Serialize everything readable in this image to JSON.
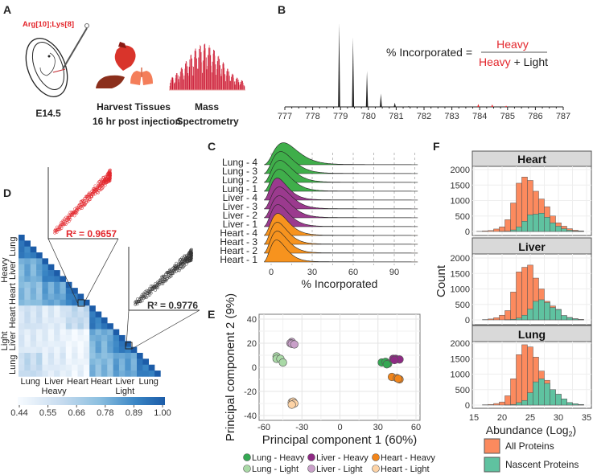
{
  "panel_labels": {
    "a": "A",
    "b": "B",
    "c": "C",
    "d": "D",
    "e": "E",
    "f": "F"
  },
  "colors": {
    "red": "#e3262c",
    "heat_low": "#f7fbff",
    "heat_high": "#1c5ca8",
    "lung": "#3fae4a",
    "liver": "#9b3a8e",
    "heart": "#f7931e",
    "lung_light": "#a9d9a6",
    "liver_light": "#c9a0c9",
    "heart_light": "#fdd3a6",
    "all_proteins": "#fc8a5e",
    "nascent_proteins": "#5fc2a0"
  },
  "panel_a": {
    "reagent": "Arg[10];Lys[8]",
    "step1": "E14.5",
    "step2_line1": "Harvest Tissues",
    "step2_line2": "16 hr post injection",
    "step3_line1": "Mass",
    "step3_line2": "Spectrometry",
    "icons": [
      "embryo-injection-icon",
      "heart-icon",
      "liver-icon",
      "lungs-icon",
      "mass-spectrum-icon"
    ]
  },
  "panel_b": {
    "formula_left": "% Incorporated =",
    "numerator": "Heavy",
    "denominator_heavy": "Heavy",
    "denominator_rest": " + Light",
    "x_ticks": [
      777,
      778,
      779,
      780,
      781,
      782,
      783,
      784,
      785,
      786,
      787
    ],
    "peaks": [
      {
        "mz": 778.95,
        "rel": 1.0,
        "label": "light"
      },
      {
        "mz": 779.45,
        "rel": 0.83,
        "label": "light"
      },
      {
        "mz": 779.95,
        "rel": 0.43,
        "label": "light"
      },
      {
        "mz": 780.45,
        "rel": 0.16,
        "label": "light"
      },
      {
        "mz": 780.95,
        "rel": 0.05,
        "label": "light"
      },
      {
        "mz": 781.45,
        "rel": 0.01,
        "label": "light"
      },
      {
        "mz": 783.95,
        "rel": 0.035,
        "label": "heavy"
      },
      {
        "mz": 784.45,
        "rel": 0.03,
        "label": "heavy"
      },
      {
        "mz": 784.95,
        "rel": 0.015,
        "label": "heavy"
      }
    ]
  },
  "panel_c": {
    "xlabel": "% Incorporated",
    "x_ticks": [
      0,
      30,
      60,
      90
    ],
    "xlim": [
      -5,
      107
    ],
    "ridges": [
      {
        "label": "Lung - 4",
        "tissue": "lung",
        "mode": 9
      },
      {
        "label": "Lung - 3",
        "tissue": "lung",
        "mode": 7
      },
      {
        "label": "Lung - 2",
        "tissue": "lung",
        "mode": 6.5
      },
      {
        "label": "Lung - 1",
        "tissue": "lung",
        "mode": 6
      },
      {
        "label": "Liver - 4",
        "tissue": "liver",
        "mode": 4.5
      },
      {
        "label": "Liver - 3",
        "tissue": "liver",
        "mode": 6
      },
      {
        "label": "Liver - 2",
        "tissue": "liver",
        "mode": 6
      },
      {
        "label": "Liver - 1",
        "tissue": "liver",
        "mode": 5
      },
      {
        "label": "Heart - 4",
        "tissue": "heart",
        "mode": 5
      },
      {
        "label": "Heart - 3",
        "tissue": "heart",
        "mode": 4.5
      },
      {
        "label": "Heart - 2",
        "tissue": "heart",
        "mode": 4.5
      },
      {
        "label": "Heart - 1",
        "tissue": "heart",
        "mode": 4
      }
    ]
  },
  "panel_d": {
    "groups": [
      "Heavy",
      "Light"
    ],
    "row_labels": [
      "Lung",
      "Liver",
      "Heart",
      "Heart",
      "Liver",
      "Lung"
    ],
    "col_labels": [
      "Lung",
      "Liver",
      "Heart",
      "Heart",
      "Liver",
      "Lung"
    ],
    "replicates_per_block": 4,
    "block_correlations": [
      [
        0.88
      ],
      [
        0.76,
        0.88
      ],
      [
        0.72,
        0.78,
        0.88
      ],
      [
        0.56,
        0.52,
        0.6,
        0.88
      ],
      [
        0.52,
        0.5,
        0.46,
        0.76,
        0.88
      ],
      [
        0.6,
        0.52,
        0.48,
        0.73,
        0.78,
        0.88
      ]
    ],
    "colorbar_ticks": [
      "0.44",
      "0.55",
      "0.66",
      "0.78",
      "0.89",
      "1.00"
    ],
    "colorbar_range": [
      0.44,
      1.0
    ],
    "inset_heavy": {
      "r2_label": "R² =  0.9657",
      "r2": 0.9657
    },
    "inset_light": {
      "r2_label": "R² =  0.9776",
      "r2": 0.9776
    }
  },
  "panel_e": {
    "xlabel": "Principal component 1 (60%)",
    "ylabel": "Principal component 2 (9%)",
    "x_ticks": [
      -60,
      -30,
      0,
      30,
      60
    ],
    "y_ticks": [
      40,
      20,
      0,
      -20,
      -40
    ],
    "xlim": [
      -64,
      64
    ],
    "ylim": [
      -44,
      44
    ],
    "groups": [
      {
        "name": "Lung - Heavy",
        "color": "#34a853",
        "points": [
          [
            33,
            4
          ],
          [
            36,
            4.5
          ],
          [
            38,
            3
          ],
          [
            37,
            2.5
          ]
        ]
      },
      {
        "name": "Liver - Heavy",
        "color": "#8e2a84",
        "points": [
          [
            42,
            7
          ],
          [
            44,
            7
          ],
          [
            47,
            6.5
          ],
          [
            43,
            6
          ]
        ]
      },
      {
        "name": "Heart - Heavy",
        "color": "#f2851a",
        "points": [
          [
            41,
            -8
          ],
          [
            45,
            -9
          ],
          [
            47,
            -10
          ],
          [
            46,
            -9.5
          ]
        ]
      },
      {
        "name": "Lung - Light",
        "color": "#a9d9a6",
        "points": [
          [
            -50,
            9
          ],
          [
            -50,
            7
          ],
          [
            -47,
            7
          ],
          [
            -45,
            4
          ]
        ]
      },
      {
        "name": "Liver - Light",
        "color": "#c9a0c9",
        "points": [
          [
            -38,
            21
          ],
          [
            -39,
            20
          ],
          [
            -38,
            19.5
          ],
          [
            -36,
            19
          ]
        ]
      },
      {
        "name": "Heart - Light",
        "color": "#fdd3a6",
        "points": [
          [
            -38,
            -29
          ],
          [
            -37,
            -28.5
          ],
          [
            -36,
            -30
          ],
          [
            -38,
            -31
          ]
        ]
      }
    ]
  },
  "panel_f": {
    "ylabel": "Count",
    "xlabel_main": "Abundance (Log",
    "xlabel_sub": "2",
    "xlabel_end": ")",
    "x_ticks": [
      15,
      20,
      25,
      30,
      35
    ],
    "y_ticks": [
      0,
      500,
      1000,
      1500,
      2000
    ],
    "bin_start": 16,
    "legend": [
      "All Proteins",
      "Nascent Proteins"
    ],
    "facets": [
      {
        "name": "Heart",
        "all": [
          5,
          20,
          30,
          80,
          150,
          380,
          920,
          1560,
          1760,
          1650,
          1300,
          1050,
          800,
          500,
          280,
          170,
          90,
          40,
          20
        ],
        "nascent": [
          0,
          0,
          0,
          0,
          5,
          10,
          50,
          150,
          330,
          540,
          560,
          590,
          460,
          280,
          170,
          90,
          40,
          15,
          5
        ]
      },
      {
        "name": "Liver",
        "all": [
          0,
          10,
          30,
          70,
          150,
          300,
          900,
          1550,
          1700,
          1770,
          1350,
          1000,
          600,
          450,
          340,
          140,
          80,
          40,
          15
        ],
        "nascent": [
          0,
          0,
          0,
          0,
          0,
          5,
          20,
          60,
          150,
          350,
          600,
          650,
          560,
          400,
          330,
          140,
          70,
          30,
          10
        ]
      },
      {
        "name": "Lung",
        "all": [
          0,
          10,
          20,
          50,
          100,
          300,
          850,
          1630,
          1950,
          1880,
          1550,
          1100,
          800,
          500,
          350,
          200,
          80,
          40,
          20
        ],
        "nascent": [
          0,
          0,
          0,
          0,
          0,
          5,
          20,
          80,
          150,
          400,
          750,
          850,
          700,
          500,
          350,
          200,
          80,
          40,
          15
        ]
      }
    ]
  }
}
